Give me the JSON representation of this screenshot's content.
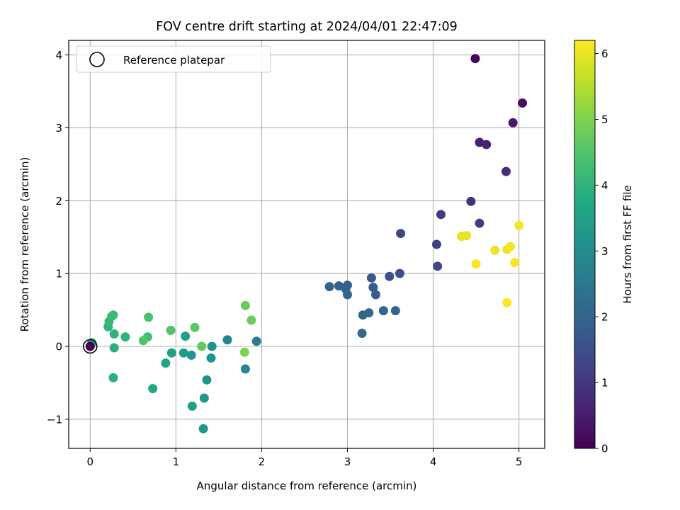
{
  "chart_data": {
    "type": "scatter",
    "title": "FOV centre drift starting at 2024/04/01 22:47:09",
    "xlabel": "Angular distance from reference (arcmin)",
    "ylabel": "Rotation from reference (arcmin)",
    "xlim": [
      -0.25,
      5.3
    ],
    "ylim": [
      -1.4,
      4.2
    ],
    "xticks": [
      0,
      1,
      2,
      3,
      4,
      5
    ],
    "yticks": [
      -1,
      0,
      1,
      2,
      3,
      4
    ],
    "grid": true,
    "legend": {
      "position": "top-left",
      "label": "Reference platepar"
    },
    "reference_point": {
      "x": 0,
      "y": 0
    },
    "colorbar": {
      "label": "Hours from first FF file",
      "range": [
        0,
        6.2
      ],
      "ticks": [
        0,
        1,
        2,
        3,
        4,
        5,
        6
      ],
      "colormap": "viridis"
    },
    "points": [
      {
        "x": 4.49,
        "y": 3.95,
        "c": 0.05
      },
      {
        "x": 5.04,
        "y": 3.34,
        "c": 0.25
      },
      {
        "x": 4.93,
        "y": 3.07,
        "c": 0.4
      },
      {
        "x": 4.54,
        "y": 2.8,
        "c": 0.55
      },
      {
        "x": 4.62,
        "y": 2.77,
        "c": 0.6
      },
      {
        "x": 4.85,
        "y": 2.4,
        "c": 0.75
      },
      {
        "x": 4.44,
        "y": 1.99,
        "c": 0.9
      },
      {
        "x": 4.09,
        "y": 1.81,
        "c": 1.0
      },
      {
        "x": 4.54,
        "y": 1.69,
        "c": 1.05
      },
      {
        "x": 4.04,
        "y": 1.4,
        "c": 1.2
      },
      {
        "x": 3.62,
        "y": 1.55,
        "c": 1.3
      },
      {
        "x": 4.05,
        "y": 1.1,
        "c": 1.3
      },
      {
        "x": 3.61,
        "y": 1.0,
        "c": 1.5
      },
      {
        "x": 3.49,
        "y": 0.96,
        "c": 1.6
      },
      {
        "x": 3.28,
        "y": 0.94,
        "c": 1.75
      },
      {
        "x": 3.3,
        "y": 0.81,
        "c": 1.8
      },
      {
        "x": 3.33,
        "y": 0.71,
        "c": 1.85
      },
      {
        "x": 3.0,
        "y": 0.84,
        "c": 1.9
      },
      {
        "x": 2.9,
        "y": 0.83,
        "c": 1.9
      },
      {
        "x": 2.79,
        "y": 0.82,
        "c": 1.95
      },
      {
        "x": 2.98,
        "y": 0.79,
        "c": 1.95
      },
      {
        "x": 3.0,
        "y": 0.71,
        "c": 2.0
      },
      {
        "x": 3.18,
        "y": 0.43,
        "c": 2.05
      },
      {
        "x": 3.25,
        "y": 0.46,
        "c": 2.1
      },
      {
        "x": 3.42,
        "y": 0.49,
        "c": 2.0
      },
      {
        "x": 3.56,
        "y": 0.49,
        "c": 2.0
      },
      {
        "x": 3.17,
        "y": 0.18,
        "c": 2.1
      },
      {
        "x": 1.94,
        "y": 0.07,
        "c": 2.6
      },
      {
        "x": 1.6,
        "y": 0.09,
        "c": 2.8
      },
      {
        "x": 1.81,
        "y": -0.31,
        "c": 2.9
      },
      {
        "x": 1.42,
        "y": 0.0,
        "c": 3.1
      },
      {
        "x": 1.41,
        "y": -0.16,
        "c": 3.2
      },
      {
        "x": 1.36,
        "y": -0.46,
        "c": 3.2
      },
      {
        "x": 1.33,
        "y": -0.71,
        "c": 3.3
      },
      {
        "x": 1.32,
        "y": -1.13,
        "c": 3.25
      },
      {
        "x": 1.19,
        "y": -0.82,
        "c": 3.5
      },
      {
        "x": 1.18,
        "y": -0.12,
        "c": 3.3
      },
      {
        "x": 1.09,
        "y": -0.09,
        "c": 3.4
      },
      {
        "x": 1.11,
        "y": 0.14,
        "c": 3.5
      },
      {
        "x": 0.95,
        "y": -0.09,
        "c": 3.5
      },
      {
        "x": 0.88,
        "y": -0.23,
        "c": 3.6
      },
      {
        "x": 0.73,
        "y": -0.58,
        "c": 3.7
      },
      {
        "x": 0.02,
        "y": 0.05,
        "c": 3.5
      },
      {
        "x": 0.28,
        "y": -0.02,
        "c": 3.9
      },
      {
        "x": 0.27,
        "y": -0.43,
        "c": 3.9
      },
      {
        "x": 0.41,
        "y": 0.13,
        "c": 4.0
      },
      {
        "x": 0.28,
        "y": 0.17,
        "c": 4.0
      },
      {
        "x": 0.21,
        "y": 0.27,
        "c": 4.0
      },
      {
        "x": 0.22,
        "y": 0.34,
        "c": 4.1
      },
      {
        "x": 0.25,
        "y": 0.41,
        "c": 4.2
      },
      {
        "x": 0.27,
        "y": 0.43,
        "c": 4.2
      },
      {
        "x": 0.67,
        "y": 0.13,
        "c": 4.3
      },
      {
        "x": 0.68,
        "y": 0.4,
        "c": 4.4
      },
      {
        "x": 0.62,
        "y": 0.08,
        "c": 4.5
      },
      {
        "x": 0.94,
        "y": 0.22,
        "c": 4.5
      },
      {
        "x": 1.22,
        "y": 0.26,
        "c": 4.6
      },
      {
        "x": 1.3,
        "y": 0.0,
        "c": 4.7
      },
      {
        "x": 1.81,
        "y": 0.56,
        "c": 4.8
      },
      {
        "x": 1.88,
        "y": 0.36,
        "c": 4.8
      },
      {
        "x": 1.8,
        "y": -0.08,
        "c": 5.0
      },
      {
        "x": 4.33,
        "y": 1.51,
        "c": 6.0
      },
      {
        "x": 4.39,
        "y": 1.52,
        "c": 6.0
      },
      {
        "x": 4.72,
        "y": 1.32,
        "c": 6.05
      },
      {
        "x": 4.86,
        "y": 1.33,
        "c": 6.05
      },
      {
        "x": 4.9,
        "y": 1.37,
        "c": 6.1
      },
      {
        "x": 5.0,
        "y": 1.66,
        "c": 6.1
      },
      {
        "x": 4.5,
        "y": 1.13,
        "c": 6.15
      },
      {
        "x": 4.95,
        "y": 1.15,
        "c": 6.15
      },
      {
        "x": 4.86,
        "y": 0.6,
        "c": 6.2
      },
      {
        "x": 0.0,
        "y": 0.0,
        "c": 0.0
      }
    ]
  }
}
